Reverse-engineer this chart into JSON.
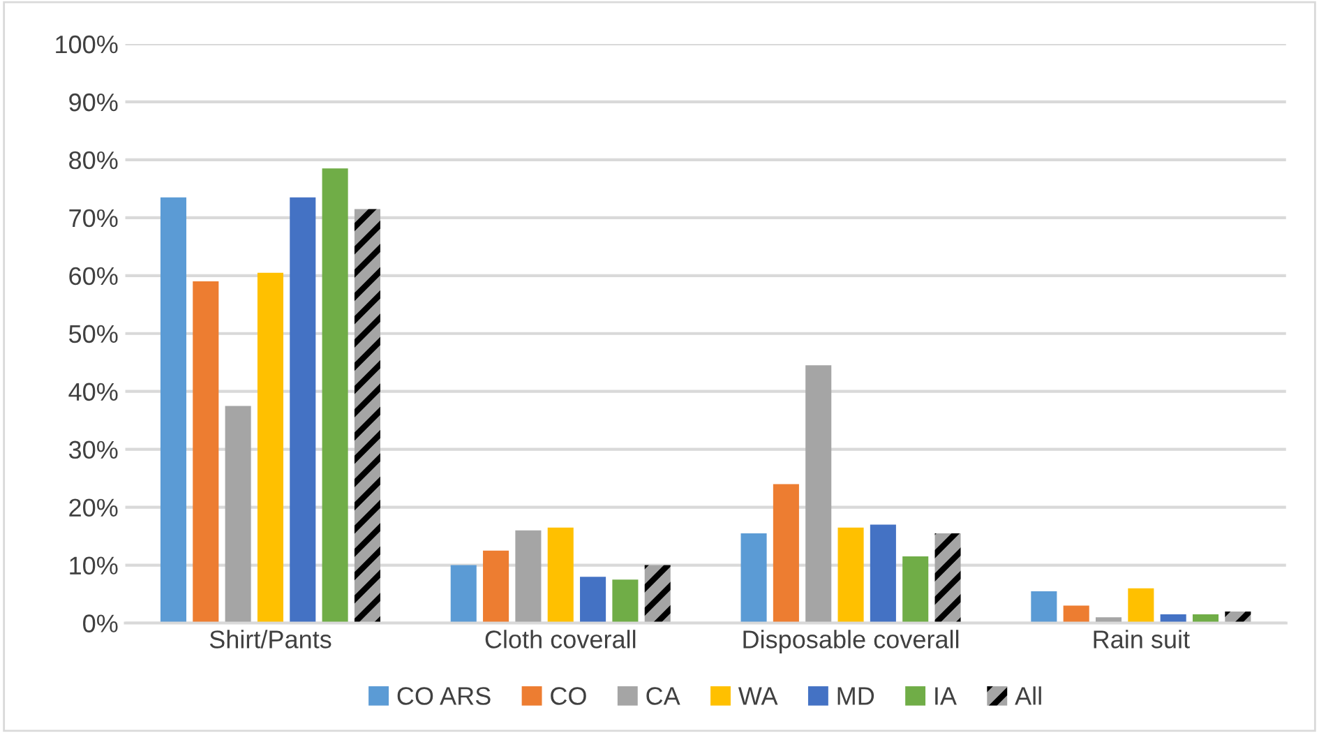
{
  "chart_data": {
    "type": "bar",
    "categories": [
      "Shirt/Pants",
      "Cloth coverall",
      "Disposable coverall",
      "Rain suit"
    ],
    "series": [
      {
        "name": "CO ARS",
        "color": "#5b9bd5",
        "values": [
          73.5,
          10,
          15.5,
          5.5
        ]
      },
      {
        "name": "CO",
        "color": "#ed7d31",
        "values": [
          59,
          12.5,
          24,
          3
        ]
      },
      {
        "name": "CA",
        "color": "#a5a5a5",
        "values": [
          37.5,
          16,
          44.5,
          1
        ]
      },
      {
        "name": "WA",
        "color": "#ffc000",
        "values": [
          60.5,
          16.5,
          16.5,
          6
        ]
      },
      {
        "name": "MD",
        "color": "#4472c4",
        "values": [
          73.5,
          8,
          17,
          1.5
        ]
      },
      {
        "name": "IA",
        "color": "#70ad47",
        "values": [
          78.5,
          7.5,
          11.5,
          1.5
        ]
      },
      {
        "name": "All",
        "color": "#a5a5a5",
        "values": [
          71.5,
          10,
          15.5,
          2
        ]
      }
    ],
    "ylim": [
      0,
      100
    ],
    "yticks": [
      {
        "value": 0,
        "label": "0%"
      },
      {
        "value": 10,
        "label": "10%"
      },
      {
        "value": 20,
        "label": "20%"
      },
      {
        "value": 30,
        "label": "30%"
      },
      {
        "value": 40,
        "label": "40%"
      },
      {
        "value": 50,
        "label": "50%"
      },
      {
        "value": 60,
        "label": "60%"
      },
      {
        "value": 70,
        "label": "70%"
      },
      {
        "value": 80,
        "label": "80%"
      },
      {
        "value": 90,
        "label": "90%"
      },
      {
        "value": 100,
        "label": "100%"
      }
    ],
    "grid": "y",
    "legend": "bottom"
  }
}
